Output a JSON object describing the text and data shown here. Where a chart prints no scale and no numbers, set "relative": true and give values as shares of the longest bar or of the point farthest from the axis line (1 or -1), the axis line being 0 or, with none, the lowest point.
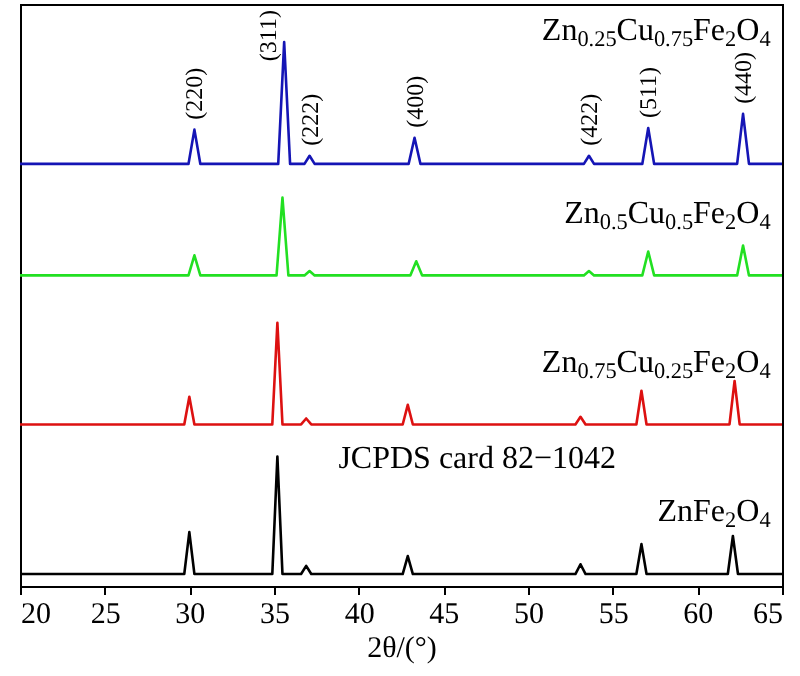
{
  "chart_data": {
    "type": "line",
    "relative": true,
    "xlabel": "2θ/(°)",
    "xlim": [
      20,
      65
    ],
    "xticks": [
      20,
      25,
      30,
      35,
      40,
      45,
      50,
      55,
      60,
      65
    ],
    "series": [
      {
        "name": "Zn$_{0.25}$Cu$_{0.75}$Fe$_{2}$O$_{4}$",
        "color": "#1515b5",
        "x": [
          20,
          29.95,
          30.3,
          30.65,
          35.25,
          35.6,
          35.95,
          36.8,
          37.1,
          37.4,
          42.95,
          43.3,
          43.65,
          53.3,
          53.6,
          53.9,
          56.75,
          57.1,
          57.45,
          62.35,
          62.7,
          63.05,
          65
        ],
        "values": [
          0.776,
          0.776,
          0.839,
          0.776,
          0.776,
          1.0,
          0.776,
          0.776,
          0.791,
          0.776,
          0.776,
          0.824,
          0.776,
          0.776,
          0.791,
          0.776,
          0.776,
          0.842,
          0.776,
          0.776,
          0.868,
          0.776,
          0.776
        ]
      },
      {
        "name": "Zn$_{0.5}$Cu$_{0.5}$Fe$_{2}$O$_{4}$",
        "color": "#22e022",
        "x": [
          20,
          29.95,
          30.3,
          30.65,
          35.15,
          35.5,
          35.85,
          36.8,
          37.1,
          37.4,
          43.05,
          43.4,
          43.75,
          53.3,
          53.6,
          53.9,
          56.75,
          57.1,
          57.45,
          62.35,
          62.7,
          63.05,
          65
        ],
        "values": [
          0.571,
          0.571,
          0.608,
          0.571,
          0.571,
          0.714,
          0.571,
          0.571,
          0.579,
          0.571,
          0.571,
          0.597,
          0.571,
          0.571,
          0.579,
          0.571,
          0.571,
          0.615,
          0.571,
          0.571,
          0.626,
          0.571,
          0.571
        ]
      },
      {
        "name": "Zn$_{0.75}$Cu$_{0.25}$Fe$_{2}$O$_{4}$",
        "color": "#dd1111",
        "x": [
          20,
          29.7,
          30.0,
          30.3,
          34.9,
          35.2,
          35.5,
          36.6,
          36.9,
          37.2,
          42.6,
          42.9,
          43.2,
          52.8,
          53.1,
          53.4,
          56.4,
          56.7,
          57.0,
          61.9,
          62.2,
          62.5,
          65
        ],
        "values": [
          0.297,
          0.297,
          0.348,
          0.297,
          0.297,
          0.484,
          0.297,
          0.297,
          0.308,
          0.297,
          0.297,
          0.333,
          0.297,
          0.297,
          0.311,
          0.297,
          0.297,
          0.359,
          0.297,
          0.297,
          0.377,
          0.297,
          0.297
        ]
      },
      {
        "name": "ZnFe$_{2}$O$_{4}$",
        "color": "#000000",
        "x": [
          20,
          29.7,
          30.0,
          30.3,
          34.9,
          35.2,
          35.5,
          36.6,
          36.9,
          37.2,
          42.6,
          42.9,
          43.2,
          52.8,
          53.1,
          53.4,
          56.4,
          56.7,
          57.0,
          61.8,
          62.1,
          62.4,
          65
        ],
        "values": [
          0.022,
          0.022,
          0.099,
          0.022,
          0.022,
          0.238,
          0.022,
          0.022,
          0.037,
          0.022,
          0.022,
          0.055,
          0.022,
          0.022,
          0.04,
          0.022,
          0.022,
          0.077,
          0.022,
          0.022,
          0.092,
          0.022,
          0.022
        ]
      }
    ],
    "annotations": [
      {
        "text": "(220)",
        "x": 30.3,
        "y": 0.839
      },
      {
        "text": "(311)",
        "x": 35.6,
        "y": 1.0
      },
      {
        "text": "(222)",
        "x": 37.1,
        "y": 0.791
      },
      {
        "text": "(400)",
        "x": 43.3,
        "y": 0.824
      },
      {
        "text": "(422)",
        "x": 53.6,
        "y": 0.791
      },
      {
        "text": "(511)",
        "x": 57.1,
        "y": 0.842
      },
      {
        "text": "(440)",
        "x": 62.7,
        "y": 0.868
      },
      "JCPDS card 82−1042"
    ]
  }
}
